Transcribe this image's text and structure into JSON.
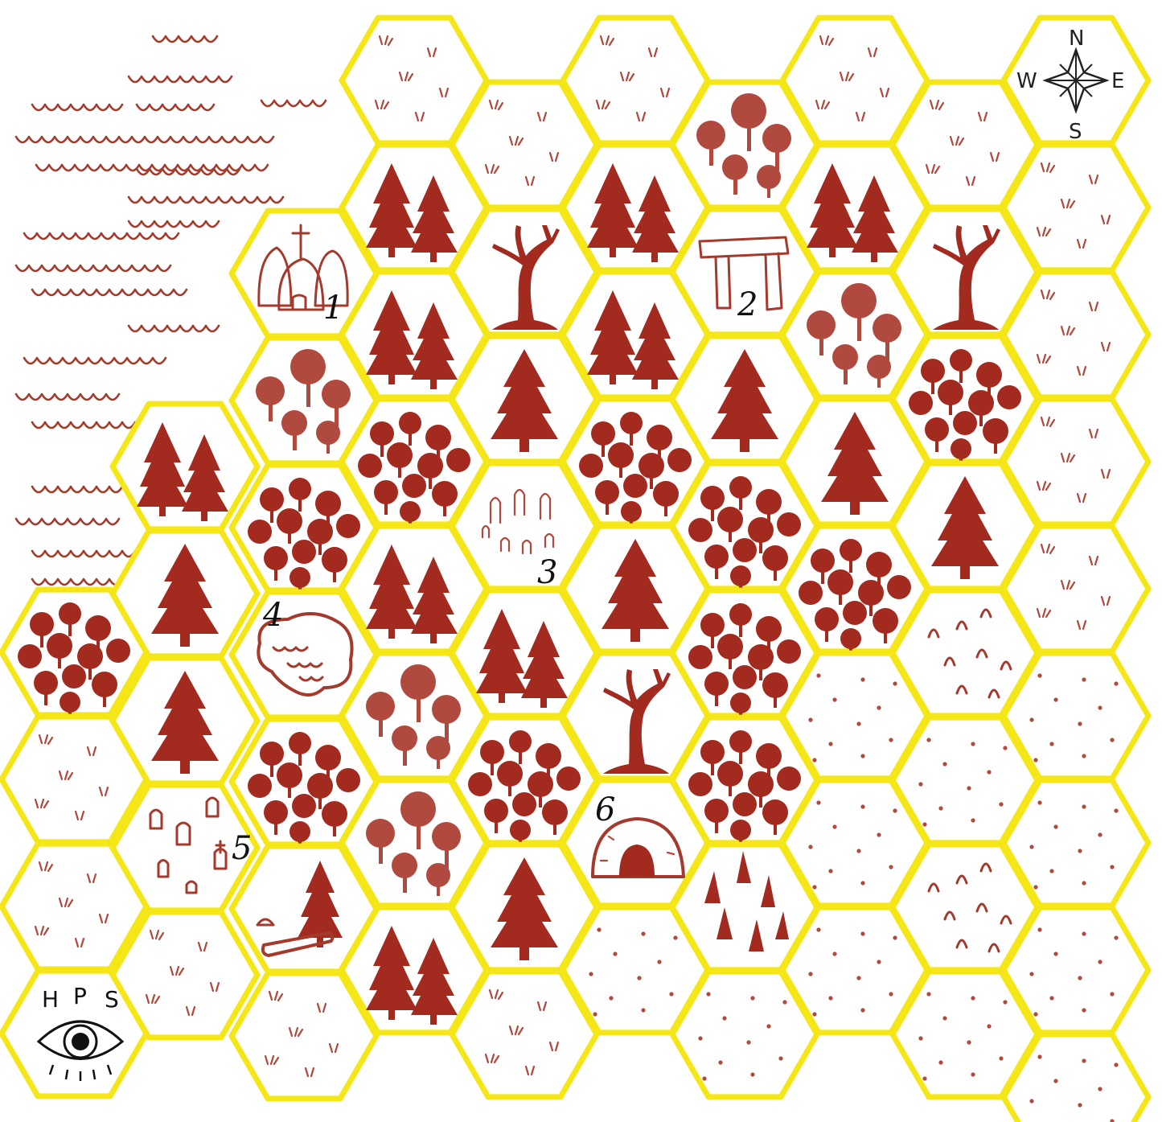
{
  "map": {
    "colors": {
      "hex_border": "#f5e617",
      "ink": "#a32a1f",
      "ink_soft": "#b04a3e",
      "sea": "#b0483a",
      "background": "#ffffff"
    },
    "compass": {
      "n": "N",
      "e": "E",
      "s": "S",
      "w": "W"
    },
    "logo": {
      "letters": [
        "H",
        "P",
        "S"
      ],
      "icon": "eye-icon"
    },
    "locations": [
      {
        "number": "1",
        "name": "village",
        "icon": "village-huts-icon"
      },
      {
        "number": "2",
        "name": "standing stones",
        "icon": "dolmen-icon"
      },
      {
        "number": "3",
        "name": "stone circle",
        "icon": "standing-stones-icon"
      },
      {
        "number": "4",
        "name": "pond",
        "icon": "pond-icon"
      },
      {
        "number": "5",
        "name": "graveyard",
        "icon": "gravestones-icon"
      },
      {
        "number": "6",
        "name": "cave",
        "icon": "cave-icon"
      }
    ]
  }
}
